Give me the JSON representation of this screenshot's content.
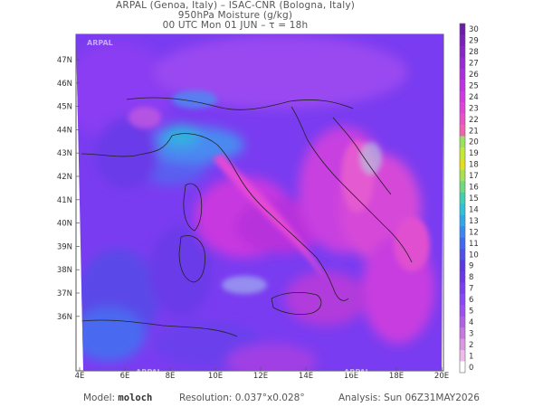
{
  "header": {
    "line1": "ARPAL (Genoa, Italy)  –  ISAC-CNR (Bologna, Italy)",
    "line2": "950hPa Moisture (g/kg)",
    "line3": "00 UTC Mon 01 JUN  –  τ = 18h"
  },
  "axes": {
    "lat_labels": [
      "47N",
      "46N",
      "45N",
      "44N",
      "43N",
      "42N",
      "41N",
      "40N",
      "39N",
      "38N",
      "37N",
      "36N"
    ],
    "lon_labels": [
      "4E",
      "6E",
      "8E",
      "10E",
      "12E",
      "14E",
      "16E",
      "18E",
      "20E"
    ]
  },
  "colorbar": {
    "ticks": [
      "30",
      "29",
      "28",
      "27",
      "26",
      "25",
      "24",
      "23",
      "22",
      "21",
      "20",
      "19",
      "18",
      "17",
      "16",
      "15",
      "14",
      "13",
      "12",
      "11",
      "10",
      "9",
      "8",
      "7",
      "6",
      "5",
      "4",
      "3",
      "2",
      "1",
      "0"
    ],
    "colors": [
      "#6a1ea8",
      "#7a22b8",
      "#8a26c6",
      "#9a2ad2",
      "#ac2edc",
      "#be34e0",
      "#d03ae0",
      "#de44d8",
      "#e852c8",
      "#f062b0",
      "#9be060",
      "#c4e838",
      "#e0e020",
      "#a8e050",
      "#70d880",
      "#40d0b0",
      "#30c0d8",
      "#30a8e8",
      "#3888f0",
      "#4068f0",
      "#5050e8",
      "#5a3ae0",
      "#6a38e8",
      "#7a40f0",
      "#8a48f4",
      "#9c50f0",
      "#b060e8",
      "#c878e0",
      "#dc98e0",
      "#eebcea",
      "#ffffff"
    ]
  },
  "footer": {
    "model_label": "Model:",
    "model_value": "moloch",
    "resolution_label": "Resolution:",
    "resolution_value": "0.037°x0.028°",
    "analysis_label": "Analysis:",
    "analysis_value": "Sun 06Z31MAY2026"
  },
  "watermark": "ARPAL"
}
